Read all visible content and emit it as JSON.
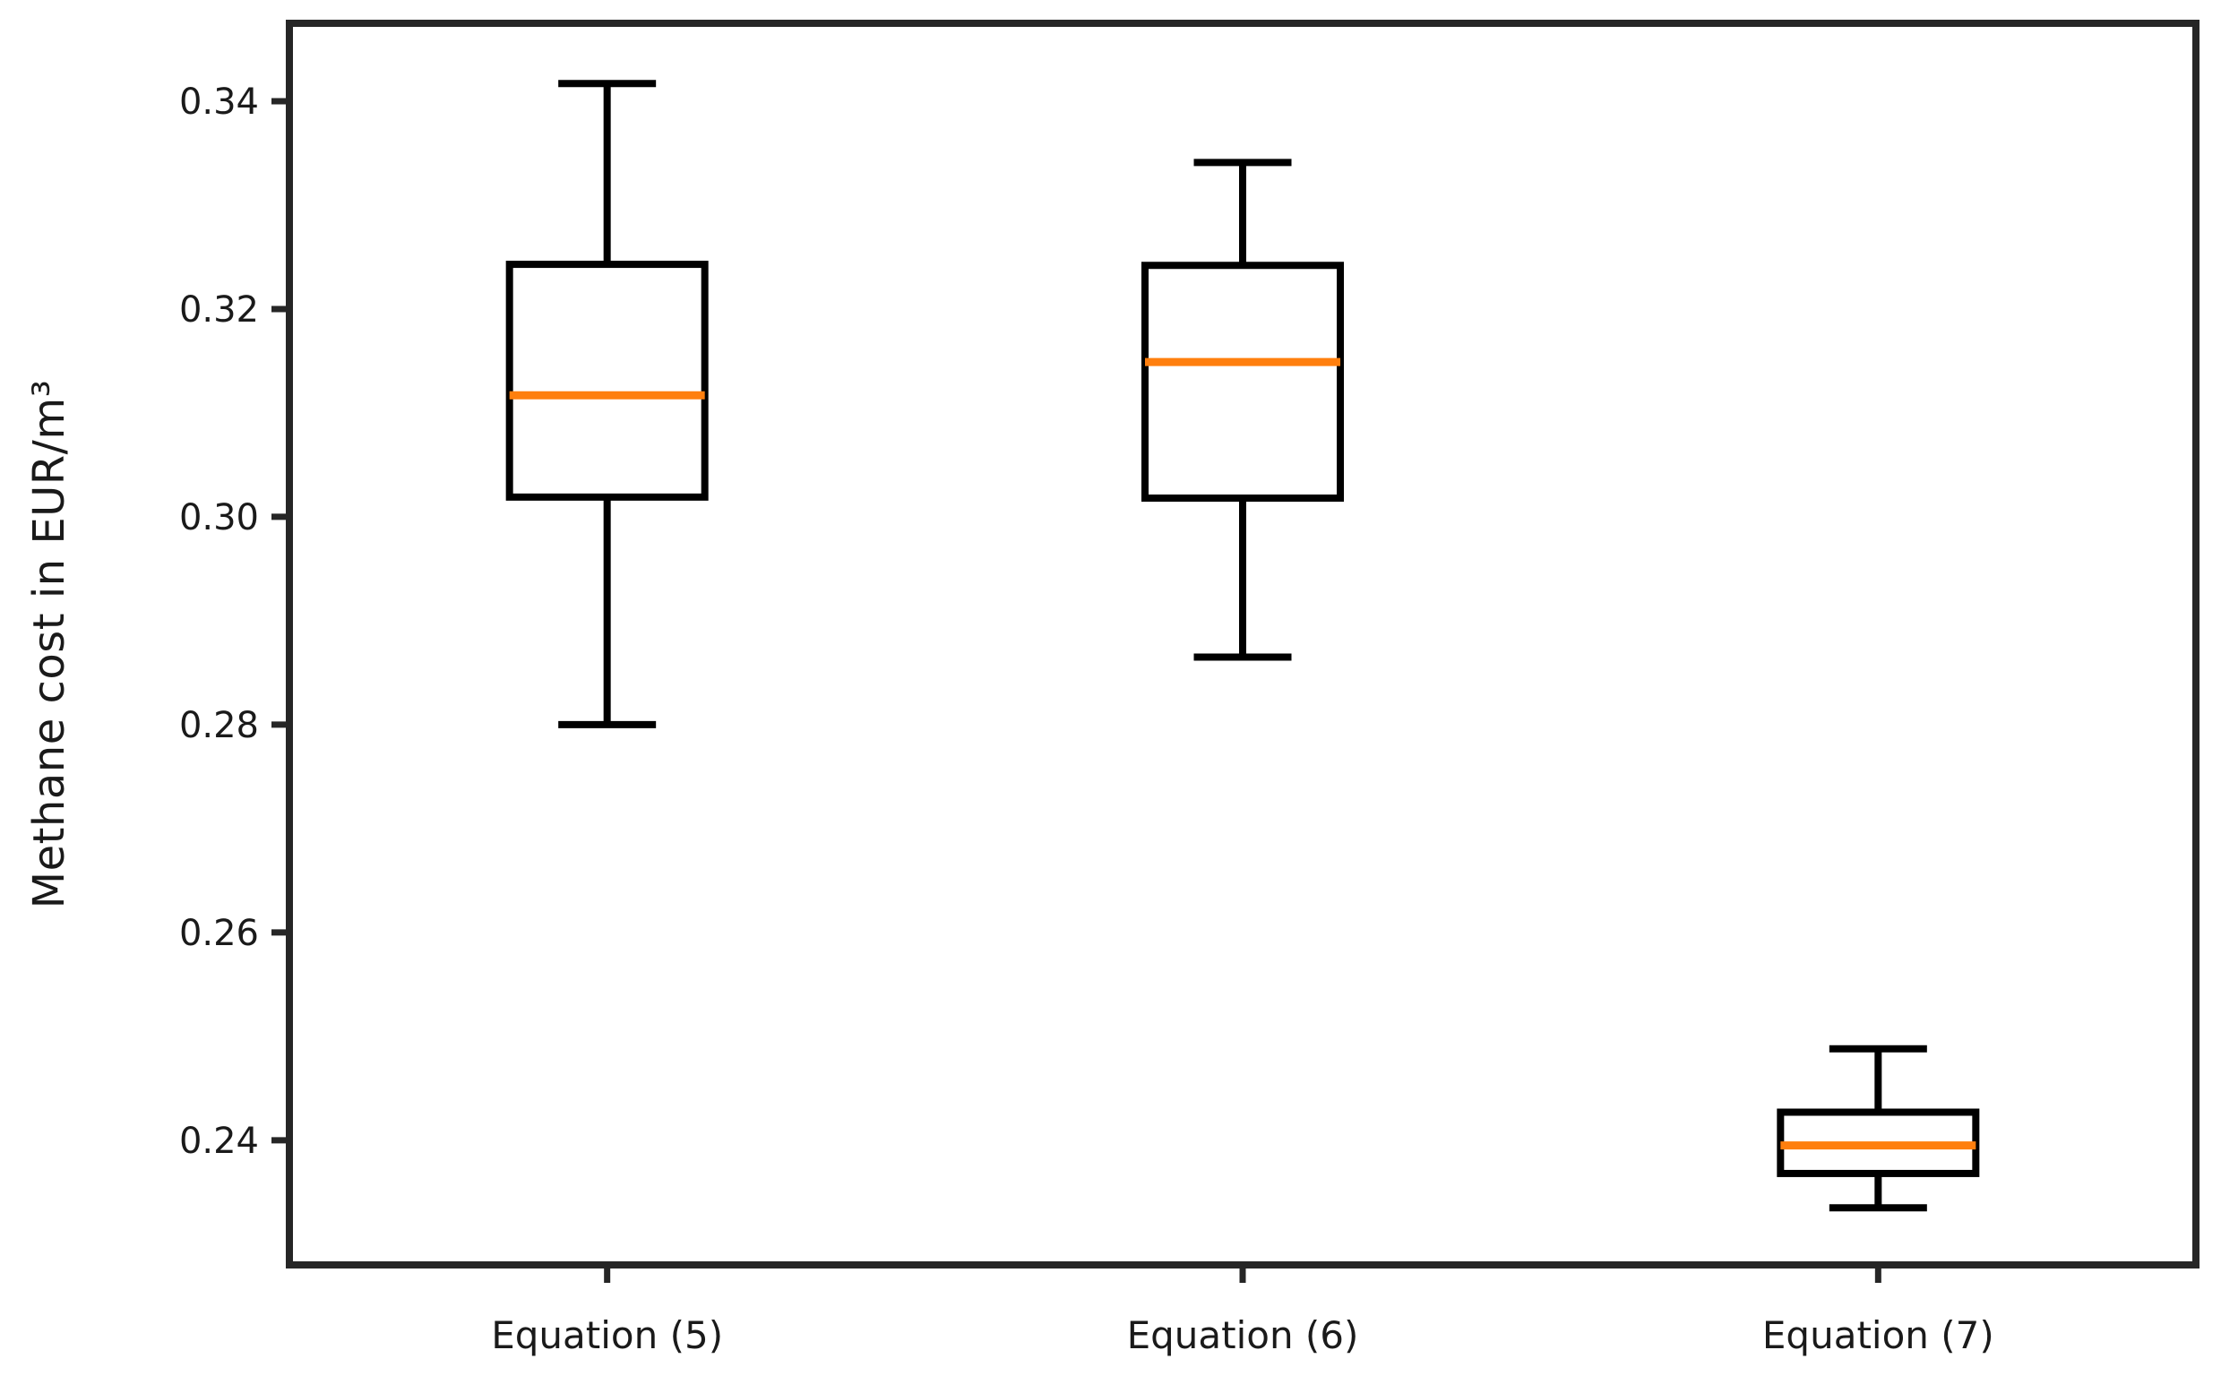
{
  "figure": {
    "background": "#ffffff"
  },
  "chart_data": {
    "type": "boxplot",
    "title": "",
    "xlabel": "",
    "ylabel": "Methane cost in EUR/m³",
    "categories": [
      "Equation (5)",
      "Equation (6)",
      "Equation (7)"
    ],
    "boxes": [
      {
        "label": "Equation (5)",
        "whisker_low": 0.28,
        "q1": 0.3019,
        "median": 0.3117,
        "q3": 0.3243,
        "whisker_high": 0.3417
      },
      {
        "label": "Equation (6)",
        "whisker_low": 0.2865,
        "q1": 0.3018,
        "median": 0.3149,
        "q3": 0.3242,
        "whisker_high": 0.3341
      },
      {
        "label": "Equation (7)",
        "whisker_low": 0.2335,
        "q1": 0.2368,
        "median": 0.2395,
        "q3": 0.2427,
        "whisker_high": 0.2488
      }
    ],
    "yticks": [
      0.24,
      0.26,
      0.28,
      0.3,
      0.32,
      0.34
    ],
    "ytick_labels": [
      "0.24",
      "0.26",
      "0.28",
      "0.30",
      "0.32",
      "0.34"
    ],
    "ylim": [
      0.228,
      0.3475
    ],
    "grid": false,
    "legend": null,
    "colors": {
      "box": "#000000",
      "median": "#ff7f0e",
      "spine": "#262626",
      "text": "#1a1a1a"
    }
  }
}
